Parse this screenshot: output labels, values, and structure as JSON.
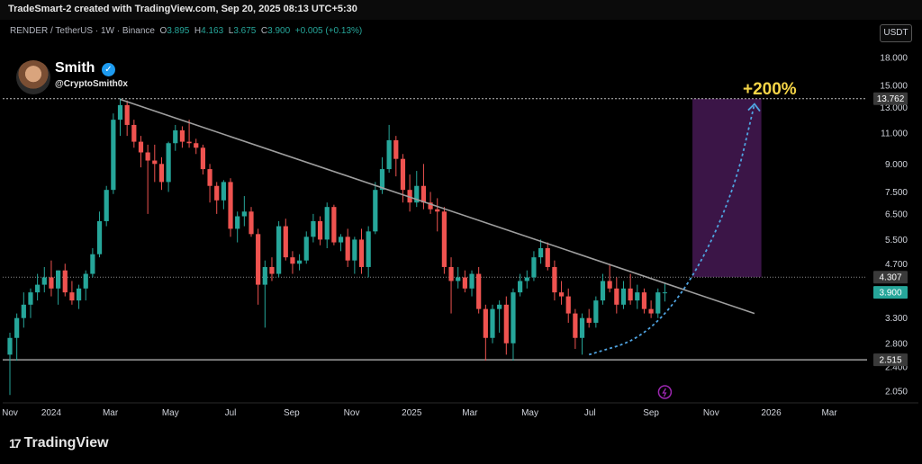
{
  "header": {
    "creator_text": "TradeSmart-2 created with TradingView.com, Sep 20, 2025 08:13 UTC+5:30"
  },
  "symbol_line": {
    "symbol": "RENDER / TetherUS · 1W · Binance",
    "open_key": "O",
    "open_value": "3.895",
    "high_key": "H",
    "high_value": "4.163",
    "low_key": "L",
    "low_value": "3.675",
    "close_key": "C",
    "close_value": "3.900",
    "change_value": "+0.005 (+0.13%)"
  },
  "currency_button": "USDT",
  "author": {
    "name": "Smith",
    "handle": "@CryptoSmith0x"
  },
  "footer": {
    "logo_text": "TradingView"
  },
  "colors": {
    "up": "#26a69a",
    "down": "#ef5350",
    "background": "#000000",
    "trendline": "#9e9e9e",
    "target_zone": "#3b1547",
    "projection": "#4fa3e0",
    "target_text": "#f5d547",
    "price_badge": "#26a69a",
    "level_badge": "#3a3a3a"
  },
  "chart_data": {
    "type": "candlestick",
    "scale": "log",
    "ylim": [
      1.9,
      23
    ],
    "xlim": [
      "2023-11-20",
      "2026-04-01"
    ],
    "x_ticks": [
      {
        "date": "2023-11-20",
        "label": "Nov"
      },
      {
        "date": "2024-01-01",
        "label": "2024"
      },
      {
        "date": "2024-03-01",
        "label": "Mar"
      },
      {
        "date": "2024-05-01",
        "label": "May"
      },
      {
        "date": "2024-07-01",
        "label": "Jul"
      },
      {
        "date": "2024-09-01",
        "label": "Sep"
      },
      {
        "date": "2024-11-01",
        "label": "Nov"
      },
      {
        "date": "2025-01-01",
        "label": "2025"
      },
      {
        "date": "2025-03-01",
        "label": "Mar"
      },
      {
        "date": "2025-05-01",
        "label": "May"
      },
      {
        "date": "2025-07-01",
        "label": "Jul"
      },
      {
        "date": "2025-09-01",
        "label": "Sep"
      },
      {
        "date": "2025-11-01",
        "label": "Nov"
      },
      {
        "date": "2026-01-01",
        "label": "2026"
      },
      {
        "date": "2026-03-01",
        "label": "Mar"
      }
    ],
    "y_ticks": [
      "18.000",
      "15.000",
      "13.000",
      "11.000",
      "9.000",
      "7.500",
      "6.500",
      "5.500",
      "4.700",
      "3.300",
      "2.800",
      "2.400",
      "2.050"
    ],
    "price_badges": [
      {
        "value": 13.762,
        "label": "13.762"
      },
      {
        "value": 4.307,
        "label": "4.307"
      },
      {
        "value": 3.9,
        "label": "3.900"
      },
      {
        "value": 2.515,
        "label": "2.515"
      }
    ],
    "candles": [
      {
        "t": "2023-11-20",
        "o": 2.6,
        "h": 3.0,
        "l": 2.0,
        "c": 2.9
      },
      {
        "t": "2023-11-27",
        "o": 2.9,
        "h": 3.4,
        "l": 2.5,
        "c": 3.3
      },
      {
        "t": "2023-12-04",
        "o": 3.3,
        "h": 3.9,
        "l": 3.1,
        "c": 3.6
      },
      {
        "t": "2023-12-11",
        "o": 3.6,
        "h": 4.0,
        "l": 3.3,
        "c": 3.9
      },
      {
        "t": "2023-12-18",
        "o": 3.9,
        "h": 4.4,
        "l": 3.7,
        "c": 4.1
      },
      {
        "t": "2023-12-25",
        "o": 4.1,
        "h": 4.6,
        "l": 3.9,
        "c": 4.3
      },
      {
        "t": "2024-01-01",
        "o": 4.3,
        "h": 4.8,
        "l": 3.8,
        "c": 4.0
      },
      {
        "t": "2024-01-08",
        "o": 4.0,
        "h": 4.5,
        "l": 3.6,
        "c": 4.5
      },
      {
        "t": "2024-01-15",
        "o": 4.5,
        "h": 4.7,
        "l": 3.8,
        "c": 3.9
      },
      {
        "t": "2024-01-22",
        "o": 3.9,
        "h": 4.2,
        "l": 3.6,
        "c": 3.7
      },
      {
        "t": "2024-01-29",
        "o": 3.7,
        "h": 4.1,
        "l": 3.5,
        "c": 4.0
      },
      {
        "t": "2024-02-05",
        "o": 4.0,
        "h": 4.5,
        "l": 3.7,
        "c": 4.4
      },
      {
        "t": "2024-02-12",
        "o": 4.4,
        "h": 5.2,
        "l": 4.3,
        "c": 5.0
      },
      {
        "t": "2024-02-19",
        "o": 5.0,
        "h": 6.6,
        "l": 4.9,
        "c": 6.2
      },
      {
        "t": "2024-02-26",
        "o": 6.2,
        "h": 7.8,
        "l": 6.0,
        "c": 7.6
      },
      {
        "t": "2024-03-04",
        "o": 7.6,
        "h": 12.5,
        "l": 7.4,
        "c": 12.0
      },
      {
        "t": "2024-03-11",
        "o": 12.0,
        "h": 13.8,
        "l": 10.8,
        "c": 13.2
      },
      {
        "t": "2024-03-18",
        "o": 13.2,
        "h": 13.6,
        "l": 10.8,
        "c": 11.6
      },
      {
        "t": "2024-03-25",
        "o": 11.6,
        "h": 12.0,
        "l": 10.0,
        "c": 10.4
      },
      {
        "t": "2024-04-01",
        "o": 10.4,
        "h": 10.8,
        "l": 8.8,
        "c": 9.7
      },
      {
        "t": "2024-04-08",
        "o": 9.7,
        "h": 10.2,
        "l": 6.5,
        "c": 9.2
      },
      {
        "t": "2024-04-15",
        "o": 9.2,
        "h": 10.2,
        "l": 8.0,
        "c": 9.0
      },
      {
        "t": "2024-04-22",
        "o": 9.0,
        "h": 9.4,
        "l": 7.6,
        "c": 8.0
      },
      {
        "t": "2024-04-29",
        "o": 8.0,
        "h": 10.4,
        "l": 7.5,
        "c": 10.3
      },
      {
        "t": "2024-05-06",
        "o": 10.3,
        "h": 11.6,
        "l": 9.8,
        "c": 11.2
      },
      {
        "t": "2024-05-13",
        "o": 11.2,
        "h": 11.5,
        "l": 10.0,
        "c": 10.4
      },
      {
        "t": "2024-05-20",
        "o": 10.4,
        "h": 12.0,
        "l": 10.0,
        "c": 10.3
      },
      {
        "t": "2024-05-27",
        "o": 10.3,
        "h": 10.6,
        "l": 9.6,
        "c": 10.0
      },
      {
        "t": "2024-06-03",
        "o": 10.0,
        "h": 10.2,
        "l": 8.4,
        "c": 8.7
      },
      {
        "t": "2024-06-10",
        "o": 8.7,
        "h": 9.0,
        "l": 7.0,
        "c": 7.8
      },
      {
        "t": "2024-06-17",
        "o": 7.8,
        "h": 8.0,
        "l": 6.5,
        "c": 7.1
      },
      {
        "t": "2024-06-24",
        "o": 7.1,
        "h": 8.1,
        "l": 6.7,
        "c": 8.0
      },
      {
        "t": "2024-07-01",
        "o": 8.0,
        "h": 8.2,
        "l": 5.6,
        "c": 5.9
      },
      {
        "t": "2024-07-08",
        "o": 5.9,
        "h": 6.6,
        "l": 5.4,
        "c": 6.4
      },
      {
        "t": "2024-07-15",
        "o": 6.4,
        "h": 7.3,
        "l": 6.0,
        "c": 6.6
      },
      {
        "t": "2024-07-22",
        "o": 6.6,
        "h": 6.8,
        "l": 5.6,
        "c": 5.7
      },
      {
        "t": "2024-07-29",
        "o": 5.7,
        "h": 5.9,
        "l": 3.6,
        "c": 4.1
      },
      {
        "t": "2024-08-05",
        "o": 4.1,
        "h": 4.8,
        "l": 3.1,
        "c": 4.6
      },
      {
        "t": "2024-08-12",
        "o": 4.6,
        "h": 4.9,
        "l": 4.2,
        "c": 4.4
      },
      {
        "t": "2024-08-19",
        "o": 4.4,
        "h": 6.2,
        "l": 4.3,
        "c": 6.0
      },
      {
        "t": "2024-08-26",
        "o": 6.0,
        "h": 6.3,
        "l": 4.8,
        "c": 4.9
      },
      {
        "t": "2024-09-02",
        "o": 4.9,
        "h": 5.1,
        "l": 4.4,
        "c": 4.7
      },
      {
        "t": "2024-09-09",
        "o": 4.7,
        "h": 5.0,
        "l": 4.5,
        "c": 4.8
      },
      {
        "t": "2024-09-16",
        "o": 4.8,
        "h": 5.8,
        "l": 4.7,
        "c": 5.6
      },
      {
        "t": "2024-09-23",
        "o": 5.6,
        "h": 6.5,
        "l": 5.4,
        "c": 6.2
      },
      {
        "t": "2024-09-30",
        "o": 6.2,
        "h": 6.4,
        "l": 5.3,
        "c": 5.5
      },
      {
        "t": "2024-10-07",
        "o": 5.5,
        "h": 7.0,
        "l": 5.2,
        "c": 6.8
      },
      {
        "t": "2024-10-14",
        "o": 6.8,
        "h": 6.9,
        "l": 5.3,
        "c": 5.4
      },
      {
        "t": "2024-10-21",
        "o": 5.4,
        "h": 5.7,
        "l": 5.1,
        "c": 5.6
      },
      {
        "t": "2024-10-28",
        "o": 5.6,
        "h": 5.9,
        "l": 4.6,
        "c": 4.8
      },
      {
        "t": "2024-11-04",
        "o": 4.8,
        "h": 5.6,
        "l": 4.4,
        "c": 5.5
      },
      {
        "t": "2024-11-11",
        "o": 5.5,
        "h": 5.9,
        "l": 4.4,
        "c": 4.6
      },
      {
        "t": "2024-11-18",
        "o": 4.6,
        "h": 6.0,
        "l": 4.3,
        "c": 5.8
      },
      {
        "t": "2024-11-25",
        "o": 5.8,
        "h": 8.0,
        "l": 5.7,
        "c": 7.6
      },
      {
        "t": "2024-12-02",
        "o": 7.6,
        "h": 9.4,
        "l": 7.4,
        "c": 8.7
      },
      {
        "t": "2024-12-09",
        "o": 8.7,
        "h": 11.6,
        "l": 8.5,
        "c": 10.5
      },
      {
        "t": "2024-12-16",
        "o": 10.5,
        "h": 10.8,
        "l": 8.3,
        "c": 9.3
      },
      {
        "t": "2024-12-23",
        "o": 9.3,
        "h": 9.6,
        "l": 7.0,
        "c": 7.6
      },
      {
        "t": "2024-12-30",
        "o": 7.6,
        "h": 8.4,
        "l": 6.6,
        "c": 7.0
      },
      {
        "t": "2025-01-06",
        "o": 7.0,
        "h": 8.6,
        "l": 6.8,
        "c": 7.8
      },
      {
        "t": "2025-01-13",
        "o": 7.8,
        "h": 9.0,
        "l": 6.7,
        "c": 7.0
      },
      {
        "t": "2025-01-20",
        "o": 7.0,
        "h": 7.5,
        "l": 6.5,
        "c": 6.7
      },
      {
        "t": "2025-01-27",
        "o": 6.7,
        "h": 7.2,
        "l": 5.8,
        "c": 6.6
      },
      {
        "t": "2025-02-03",
        "o": 6.6,
        "h": 6.8,
        "l": 4.4,
        "c": 4.6
      },
      {
        "t": "2025-02-10",
        "o": 4.6,
        "h": 4.9,
        "l": 3.4,
        "c": 4.2
      },
      {
        "t": "2025-02-17",
        "o": 4.2,
        "h": 4.6,
        "l": 4.0,
        "c": 4.3
      },
      {
        "t": "2025-02-24",
        "o": 4.3,
        "h": 4.5,
        "l": 3.9,
        "c": 4.0
      },
      {
        "t": "2025-03-03",
        "o": 4.0,
        "h": 4.5,
        "l": 3.8,
        "c": 4.4
      },
      {
        "t": "2025-03-10",
        "o": 4.4,
        "h": 4.6,
        "l": 3.4,
        "c": 3.5
      },
      {
        "t": "2025-03-17",
        "o": 3.5,
        "h": 3.6,
        "l": 2.5,
        "c": 2.9
      },
      {
        "t": "2025-03-24",
        "o": 2.9,
        "h": 3.6,
        "l": 2.8,
        "c": 3.5
      },
      {
        "t": "2025-03-31",
        "o": 3.5,
        "h": 3.7,
        "l": 3.0,
        "c": 3.6
      },
      {
        "t": "2025-04-07",
        "o": 3.6,
        "h": 3.8,
        "l": 2.6,
        "c": 2.8
      },
      {
        "t": "2025-04-14",
        "o": 2.8,
        "h": 4.0,
        "l": 2.5,
        "c": 3.9
      },
      {
        "t": "2025-04-21",
        "o": 3.9,
        "h": 4.4,
        "l": 3.8,
        "c": 4.2
      },
      {
        "t": "2025-04-28",
        "o": 4.2,
        "h": 4.5,
        "l": 4.0,
        "c": 4.3
      },
      {
        "t": "2025-05-05",
        "o": 4.3,
        "h": 5.1,
        "l": 4.2,
        "c": 4.9
      },
      {
        "t": "2025-05-12",
        "o": 4.9,
        "h": 5.5,
        "l": 4.7,
        "c": 5.2
      },
      {
        "t": "2025-05-19",
        "o": 5.2,
        "h": 5.4,
        "l": 4.5,
        "c": 4.6
      },
      {
        "t": "2025-05-26",
        "o": 4.6,
        "h": 4.8,
        "l": 3.7,
        "c": 3.9
      },
      {
        "t": "2025-06-02",
        "o": 3.9,
        "h": 4.2,
        "l": 3.6,
        "c": 3.8
      },
      {
        "t": "2025-06-09",
        "o": 3.8,
        "h": 4.0,
        "l": 3.2,
        "c": 3.4
      },
      {
        "t": "2025-06-16",
        "o": 3.4,
        "h": 3.5,
        "l": 2.7,
        "c": 2.9
      },
      {
        "t": "2025-06-23",
        "o": 2.9,
        "h": 3.4,
        "l": 2.6,
        "c": 3.3
      },
      {
        "t": "2025-06-30",
        "o": 3.3,
        "h": 3.5,
        "l": 3.1,
        "c": 3.2
      },
      {
        "t": "2025-07-07",
        "o": 3.2,
        "h": 3.8,
        "l": 3.1,
        "c": 3.7
      },
      {
        "t": "2025-07-14",
        "o": 3.7,
        "h": 4.4,
        "l": 3.6,
        "c": 4.2
      },
      {
        "t": "2025-07-21",
        "o": 4.2,
        "h": 4.7,
        "l": 3.9,
        "c": 4.0
      },
      {
        "t": "2025-07-28",
        "o": 4.0,
        "h": 4.3,
        "l": 3.4,
        "c": 3.6
      },
      {
        "t": "2025-08-04",
        "o": 3.6,
        "h": 4.2,
        "l": 3.5,
        "c": 4.0
      },
      {
        "t": "2025-08-11",
        "o": 4.0,
        "h": 4.4,
        "l": 3.6,
        "c": 3.7
      },
      {
        "t": "2025-08-18",
        "o": 3.7,
        "h": 4.1,
        "l": 3.5,
        "c": 3.9
      },
      {
        "t": "2025-08-25",
        "o": 3.9,
        "h": 4.0,
        "l": 3.4,
        "c": 3.5
      },
      {
        "t": "2025-09-01",
        "o": 3.5,
        "h": 3.7,
        "l": 3.3,
        "c": 3.4
      },
      {
        "t": "2025-09-08",
        "o": 3.4,
        "h": 4.0,
        "l": 3.3,
        "c": 3.9
      },
      {
        "t": "2025-09-15",
        "o": 3.895,
        "h": 4.163,
        "l": 3.675,
        "c": 3.9
      }
    ],
    "trendline": [
      {
        "t": "2024-03-11",
        "v": 13.7
      },
      {
        "t": "2025-12-15",
        "v": 3.4
      }
    ],
    "support_level": 2.515,
    "resistance_dotted": 4.307,
    "target_level": 13.762,
    "target_zone": {
      "t_start": "2025-10-13",
      "t_end": "2025-12-22",
      "low": 4.307,
      "high": 13.762
    },
    "projection": [
      {
        "t": "2025-06-30",
        "v": 2.6
      },
      {
        "t": "2025-08-25",
        "v": 2.9
      },
      {
        "t": "2025-10-13",
        "v": 4.2
      },
      {
        "t": "2025-11-24",
        "v": 7.5
      },
      {
        "t": "2025-12-15",
        "v": 13.3
      }
    ],
    "target_label": "+200%",
    "event_icon_date": "2025-09-15"
  }
}
